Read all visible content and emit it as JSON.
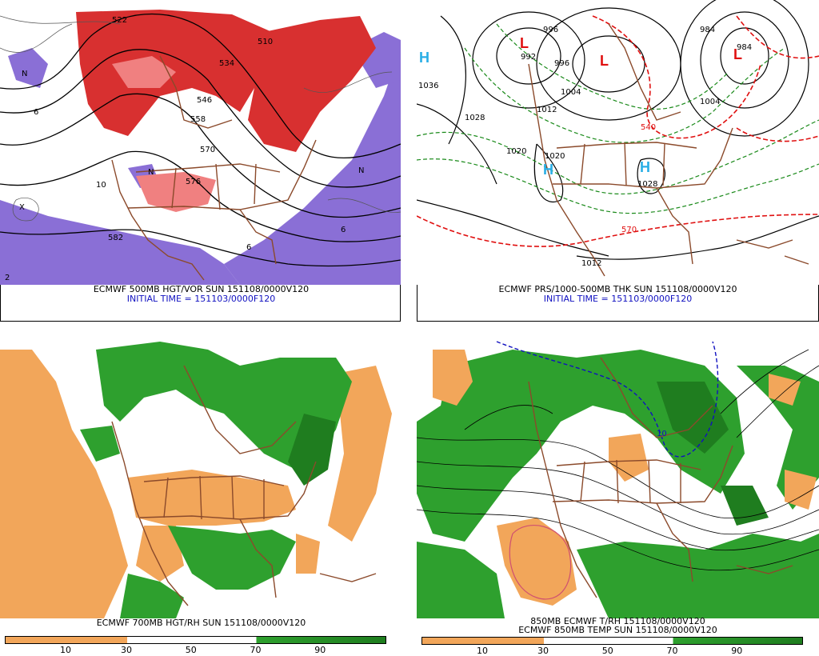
{
  "panels": {
    "p500": {
      "caption": "ECMWF 500MB HGT/VOR SUN 151108/0000V120",
      "caption2": "INITIAL TIME = 151103/0000F120",
      "labels": [
        "522",
        "546",
        "558",
        "570",
        "576",
        "582",
        "510",
        "534",
        "N",
        "N",
        "X",
        "10",
        "6",
        "2",
        "6",
        "6",
        "N"
      ]
    },
    "pthk": {
      "caption": "ECMWF PRS/1000-500MB THK SUN 151108/0000V120",
      "caption2": "INITIAL TIME = 151103/0000F120",
      "labels": [
        "L",
        "L",
        "L",
        "H",
        "H",
        "H",
        "996",
        "992",
        "996",
        "1004",
        "1012",
        "1020",
        "1020",
        "1028",
        "1028",
        "1036",
        "1012",
        "984",
        "984",
        "1004",
        "540",
        "570"
      ]
    },
    "p700": {
      "caption": "ECMWF 700MB HGT/RH SUN 151108/0000V120",
      "colorbar": {
        "ticks": [
          "10",
          "30",
          "50",
          "70",
          "90"
        ]
      }
    },
    "p850": {
      "caption": "850MB ECMWF T/RH 151108/0000V120",
      "caption2": "ECMWF 850MB TEMP SUN 151108/0000V120",
      "colorbar": {
        "ticks": [
          "10",
          "30",
          "50",
          "70",
          "90"
        ]
      },
      "labels": [
        "10"
      ]
    }
  },
  "colors": {
    "vort_red": "#d83030",
    "vort_red_light": "#f08080",
    "vort_purple": "#8a6fd6",
    "rh_dry": "#f2a65a",
    "rh_moist": "#2ea02e",
    "rh_moist_dark": "#1f7d1f",
    "geography": "#8b4a2b",
    "thk_red": "#e01010",
    "thk_green": "#1a8a1a",
    "hi_blue": "#29aee6",
    "lo_red": "#e01010"
  }
}
